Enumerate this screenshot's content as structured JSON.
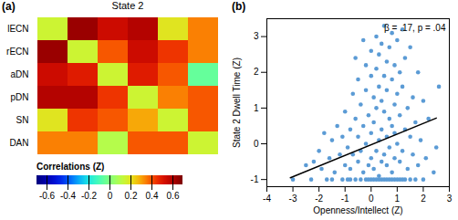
{
  "chart_data": [
    {
      "type": "heatmap",
      "panel": "(a)",
      "title": "State 2",
      "rows": [
        "lECN",
        "rECN",
        "aDN",
        "pDN",
        "SN",
        "DAN"
      ],
      "cells": [
        [
          0.15,
          0.65,
          0.55,
          0.6,
          0.2,
          0.35
        ],
        [
          0.65,
          0.15,
          0.4,
          0.55,
          0.45,
          0.35
        ],
        [
          0.55,
          0.5,
          0.15,
          0.5,
          0.4,
          -0.05
        ],
        [
          0.6,
          0.6,
          0.45,
          0.15,
          0.35,
          0.4
        ],
        [
          0.2,
          0.45,
          0.4,
          0.3,
          0.15,
          0.4
        ],
        [
          0.35,
          0.35,
          0.1,
          0.4,
          0.4,
          0.15
        ]
      ],
      "colorbar_range": [
        -0.7,
        0.7
      ],
      "colorbar_ticks": [
        -0.6,
        -0.4,
        -0.2,
        0,
        0.2,
        0.4,
        0.6
      ],
      "colorbar_label": "Correlations (Z)"
    },
    {
      "type": "scatter",
      "panel": "(b)",
      "x_label": "Openness/Intellect (Z)",
      "y_label": "State 2 Dwell Time (Z)",
      "annotation": "β = .17, p = .04",
      "color": "#5b9bd5",
      "marker": "circle",
      "grid": false,
      "xlim": [
        -4,
        3
      ],
      "xticks": [
        -4,
        -3,
        -2,
        -1,
        0,
        1,
        2,
        3
      ],
      "ylim": [
        -1.2,
        3.5
      ],
      "yticks": [
        -1,
        0,
        1,
        2,
        3
      ],
      "x": [
        -3.0,
        -2.5,
        -2.2,
        -2.0,
        -1.9,
        -1.8,
        -1.6,
        -1.5,
        -1.5,
        -1.4,
        -1.3,
        -1.2,
        -1.1,
        -1.1,
        -1.0,
        -1.0,
        -0.9,
        -0.9,
        -0.8,
        -0.8,
        -0.7,
        -0.7,
        -0.6,
        -0.6,
        -0.6,
        -0.5,
        -0.5,
        -0.5,
        -0.4,
        -0.4,
        -0.4,
        -0.3,
        -0.3,
        -0.3,
        -0.2,
        -0.2,
        -0.2,
        -0.2,
        -0.1,
        -0.1,
        -0.1,
        0.0,
        0.0,
        0.0,
        0.0,
        0.0,
        0.1,
        0.1,
        0.1,
        0.1,
        0.2,
        0.2,
        0.2,
        0.2,
        0.2,
        0.3,
        0.3,
        0.3,
        0.3,
        0.4,
        0.4,
        0.4,
        0.4,
        0.4,
        0.5,
        0.5,
        0.5,
        0.5,
        0.5,
        0.6,
        0.6,
        0.6,
        0.6,
        0.6,
        0.7,
        0.7,
        0.7,
        0.7,
        0.8,
        0.8,
        0.8,
        0.8,
        0.8,
        0.9,
        0.9,
        0.9,
        0.9,
        1.0,
        1.0,
        1.0,
        1.0,
        1.1,
        1.1,
        1.1,
        1.1,
        1.2,
        1.2,
        1.2,
        1.3,
        1.3,
        1.3,
        1.4,
        1.4,
        1.5,
        1.5,
        1.5,
        1.6,
        1.6,
        1.7,
        1.7,
        1.8,
        1.8,
        1.9,
        2.0,
        2.0,
        2.1,
        2.2,
        2.4,
        2.5,
        2.6,
        -2.3,
        -1.7,
        -0.8,
        0.3,
        0.9,
        1.2
      ],
      "y": [
        -1,
        -0.6,
        -0.5,
        -0.2,
        -0.7,
        0.3,
        -0.4,
        -1,
        0.1,
        -0.8,
        0.5,
        -0.3,
        -1,
        0.2,
        -0.6,
        0.9,
        -1,
        -0.1,
        0.4,
        -0.7,
        1.4,
        -0.3,
        -1,
        0.7,
        2.4,
        -0.5,
        0.2,
        1.8,
        -1,
        -0.2,
        1.1,
        -0.8,
        0.5,
        2.9,
        -1,
        0.0,
        1.5,
        2.2,
        -0.6,
        0.8,
        -1,
        -1,
        -0.4,
        0.3,
        1.9,
        2.6,
        -1,
        -0.7,
        0.6,
        1.3,
        -1,
        -0.2,
        1.0,
        2.1,
        3.0,
        -0.9,
        0.1,
        1.6,
        2.5,
        -1,
        -0.5,
        0.4,
        1.2,
        2.8,
        -1,
        -0.3,
        0.9,
        1.9,
        3.3,
        -1,
        -0.6,
        0.2,
        1.5,
        2.3,
        -1,
        -0.1,
        0.7,
        2.7,
        -1,
        -0.8,
        0.5,
        1.8,
        3.1,
        -1,
        -0.4,
        1.1,
        2.2,
        -1,
        0.0,
        1.4,
        2.9,
        -1,
        -0.5,
        0.8,
        2.0,
        -0.2,
        1.6,
        3.2,
        -1,
        0.4,
        2.4,
        -0.7,
        1.0,
        -1,
        0.2,
        2.7,
        -0.3,
        1.3,
        -1,
        0.6,
        -0.6,
        2.0,
        0.1,
        -1,
        1.2,
        -0.4,
        0.7,
        -0.8,
        -0.1,
        1.6,
        -1,
        -1,
        -1,
        -1,
        0.3,
        -1
      ],
      "trend_line": {
        "x": [
          -3.1,
          2.5
        ],
        "y": [
          -0.95,
          0.72
        ]
      }
    }
  ]
}
